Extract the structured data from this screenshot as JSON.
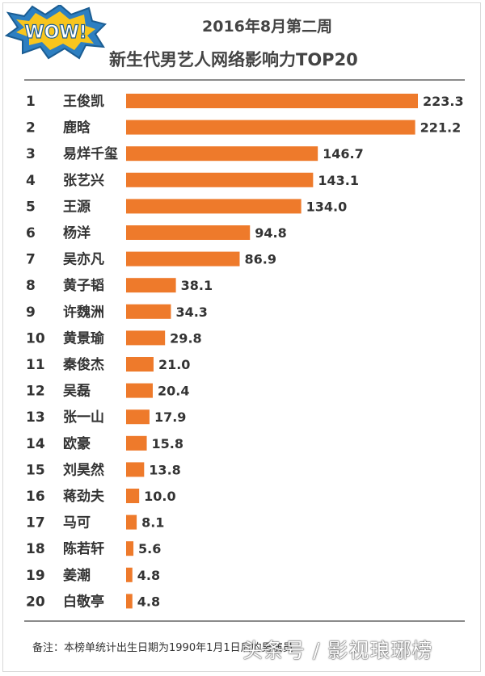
{
  "brand_colors": {
    "bar": "#EE7A2B",
    "text": "#333333",
    "logo_yellow": "#F8C51D",
    "logo_blue": "#2D7FC1"
  },
  "logo": {
    "text": "WOW!",
    "icon": "wow-comic-burst-icon"
  },
  "footnote": "备注：本榜单统计出生日期为1990年1月1日后的男演员",
  "watermark": "头条号 / 影视琅琊榜",
  "chart_data": {
    "type": "bar",
    "orientation": "horizontal",
    "title": "2016年8月第二周",
    "subtitle": "新生代男艺人网络影响力TOP20",
    "xlim": [
      0,
      223.3
    ],
    "grid": false,
    "legend": "none",
    "ranks": [
      "1",
      "2",
      "3",
      "4",
      "5",
      "6",
      "7",
      "8",
      "9",
      "10",
      "11",
      "12",
      "13",
      "14",
      "15",
      "16",
      "17",
      "18",
      "19",
      "20"
    ],
    "categories": [
      "王俊凯",
      "鹿晗",
      "易烊千玺",
      "张艺兴",
      "王源",
      "杨洋",
      "吴亦凡",
      "黄子韬",
      "许魏洲",
      "黄景瑜",
      "秦俊杰",
      "吴磊",
      "张一山",
      "欧豪",
      "刘昊然",
      "蒋劲夫",
      "马可",
      "陈若轩",
      "姜潮",
      "白敬亭"
    ],
    "values": [
      223.3,
      221.2,
      146.7,
      143.1,
      134.0,
      94.8,
      86.9,
      38.1,
      34.3,
      29.8,
      21.0,
      20.4,
      17.9,
      15.8,
      13.8,
      10.0,
      8.1,
      5.6,
      4.8,
      4.8
    ],
    "value_labels": [
      "223.3",
      "221.2",
      "146.7",
      "143.1",
      "134.0",
      "94.8",
      "86.9",
      "38.1",
      "34.3",
      "29.8",
      "21.0",
      "20.4",
      "17.9",
      "15.8",
      "13.8",
      "10.0",
      "8.1",
      "5.6",
      "4.8",
      "4.8"
    ]
  }
}
